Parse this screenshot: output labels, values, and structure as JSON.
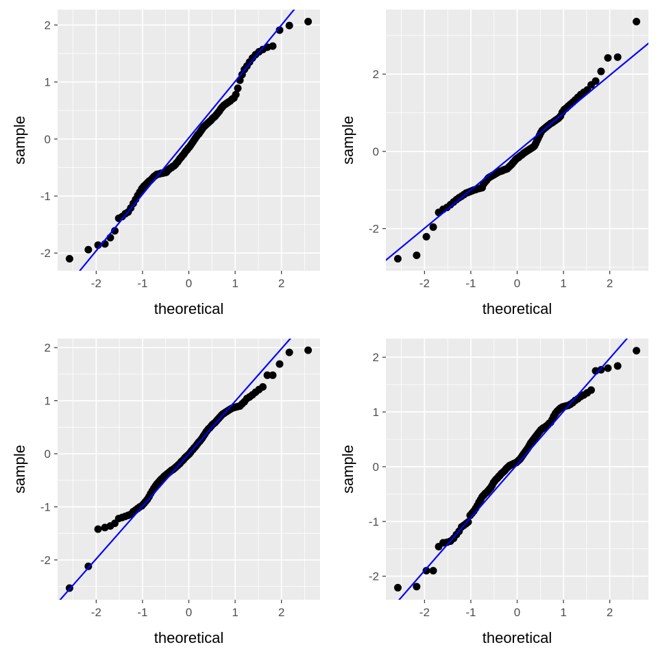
{
  "chart_data": [
    {
      "type": "scatter",
      "title": "",
      "xlabel": "theoretical",
      "ylabel": "sample",
      "xlim": [
        -2.834,
        2.834
      ],
      "ylim": [
        -2.31,
        2.27
      ],
      "grid": true,
      "x_ticks": [
        "-2",
        "-1",
        "0",
        "1",
        "2"
      ],
      "y_ticks": [
        "-2",
        "-1",
        "0",
        "1",
        "2"
      ],
      "point_color": "#000000",
      "line_color": "#0000ff",
      "reference_line": {
        "intercept": 0.02,
        "slope": 0.99
      },
      "x": [
        -2.576,
        -2.17,
        -1.96,
        -1.812,
        -1.695,
        -1.598,
        -1.514,
        -1.44,
        -1.372,
        -1.311,
        -1.254,
        -1.2,
        -1.15,
        -1.103,
        -1.058,
        -1.015,
        -0.974,
        -0.935,
        -0.896,
        -0.86,
        -0.824,
        -0.789,
        -0.755,
        -0.722,
        -0.69,
        -0.659,
        -0.628,
        -0.598,
        -0.568,
        -0.539,
        -0.51,
        -0.482,
        -0.454,
        -0.426,
        -0.399,
        -0.372,
        -0.345,
        -0.319,
        -0.292,
        -0.266,
        -0.24,
        -0.215,
        -0.189,
        -0.164,
        -0.138,
        -0.113,
        -0.088,
        -0.063,
        -0.038,
        -0.013,
        0.013,
        0.038,
        0.063,
        0.088,
        0.113,
        0.138,
        0.164,
        0.189,
        0.215,
        0.24,
        0.266,
        0.292,
        0.319,
        0.345,
        0.372,
        0.399,
        0.426,
        0.454,
        0.482,
        0.51,
        0.539,
        0.568,
        0.598,
        0.628,
        0.659,
        0.69,
        0.722,
        0.755,
        0.789,
        0.824,
        0.86,
        0.896,
        0.935,
        0.974,
        1.015,
        1.058,
        1.103,
        1.15,
        1.2,
        1.254,
        1.311,
        1.372,
        1.44,
        1.514,
        1.598,
        1.695,
        1.812,
        1.96,
        2.17,
        2.576
      ],
      "y": [
        -2.1,
        -1.94,
        -1.86,
        -1.84,
        -1.73,
        -1.61,
        -1.39,
        -1.36,
        -1.31,
        -1.28,
        -1.21,
        -1.13,
        -1.06,
        -0.99,
        -0.93,
        -0.87,
        -0.83,
        -0.8,
        -0.77,
        -0.74,
        -0.72,
        -0.69,
        -0.66,
        -0.64,
        -0.62,
        -0.615,
        -0.61,
        -0.6,
        -0.6,
        -0.59,
        -0.59,
        -0.58,
        -0.55,
        -0.53,
        -0.51,
        -0.5,
        -0.48,
        -0.47,
        -0.45,
        -0.42,
        -0.4,
        -0.37,
        -0.34,
        -0.32,
        -0.29,
        -0.27,
        -0.24,
        -0.21,
        -0.19,
        -0.16,
        -0.14,
        -0.11,
        -0.08,
        -0.05,
        -0.02,
        0.01,
        0.04,
        0.07,
        0.09,
        0.12,
        0.15,
        0.18,
        0.21,
        0.23,
        0.25,
        0.27,
        0.29,
        0.31,
        0.33,
        0.36,
        0.38,
        0.4,
        0.43,
        0.46,
        0.49,
        0.53,
        0.56,
        0.59,
        0.61,
        0.63,
        0.65,
        0.67,
        0.7,
        0.72,
        0.78,
        0.89,
        1.03,
        1.13,
        1.22,
        1.28,
        1.35,
        1.42,
        1.48,
        1.53,
        1.57,
        1.61,
        1.63,
        1.91,
        1.99,
        2.06
      ]
    },
    {
      "type": "scatter",
      "title": "",
      "xlabel": "theoretical",
      "ylabel": "sample",
      "xlim": [
        -2.834,
        2.834
      ],
      "ylim": [
        -3.09,
        3.67
      ],
      "grid": true,
      "x_ticks": [
        "-2",
        "-1",
        "0",
        "1",
        "2"
      ],
      "y_ticks": [
        "-2",
        "0",
        "2"
      ],
      "point_color": "#000000",
      "line_color": "#0000ff",
      "reference_line": {
        "intercept": -0.01,
        "slope": 0.99
      },
      "x": [
        -2.576,
        -2.17,
        -1.96,
        -1.812,
        -1.695,
        -1.598,
        -1.514,
        -1.44,
        -1.372,
        -1.311,
        -1.254,
        -1.2,
        -1.15,
        -1.103,
        -1.058,
        -1.015,
        -0.974,
        -0.935,
        -0.896,
        -0.86,
        -0.824,
        -0.789,
        -0.755,
        -0.722,
        -0.69,
        -0.659,
        -0.628,
        -0.598,
        -0.568,
        -0.539,
        -0.51,
        -0.482,
        -0.454,
        -0.426,
        -0.399,
        -0.372,
        -0.345,
        -0.319,
        -0.292,
        -0.266,
        -0.24,
        -0.215,
        -0.189,
        -0.164,
        -0.138,
        -0.113,
        -0.088,
        -0.063,
        -0.038,
        -0.013,
        0.013,
        0.038,
        0.063,
        0.088,
        0.113,
        0.138,
        0.164,
        0.189,
        0.215,
        0.24,
        0.266,
        0.292,
        0.319,
        0.345,
        0.372,
        0.399,
        0.426,
        0.454,
        0.482,
        0.51,
        0.539,
        0.568,
        0.598,
        0.628,
        0.659,
        0.69,
        0.722,
        0.755,
        0.789,
        0.824,
        0.86,
        0.896,
        0.935,
        0.974,
        1.015,
        1.058,
        1.103,
        1.15,
        1.2,
        1.254,
        1.311,
        1.372,
        1.44,
        1.514,
        1.598,
        1.695,
        1.812,
        1.96,
        2.17,
        2.576
      ],
      "y": [
        -2.78,
        -2.69,
        -2.21,
        -1.96,
        -1.58,
        -1.5,
        -1.45,
        -1.38,
        -1.31,
        -1.25,
        -1.2,
        -1.16,
        -1.12,
        -1.08,
        -1.06,
        -1.04,
        -1.02,
        -1.0,
        -0.99,
        -0.97,
        -0.96,
        -0.95,
        -0.94,
        -0.84,
        -0.79,
        -0.75,
        -0.7,
        -0.67,
        -0.65,
        -0.63,
        -0.61,
        -0.59,
        -0.57,
        -0.55,
        -0.53,
        -0.52,
        -0.51,
        -0.5,
        -0.48,
        -0.47,
        -0.46,
        -0.45,
        -0.42,
        -0.39,
        -0.36,
        -0.33,
        -0.29,
        -0.26,
        -0.22,
        -0.19,
        -0.17,
        -0.15,
        -0.12,
        -0.1,
        -0.08,
        -0.05,
        -0.03,
        -0.01,
        0.01,
        0.03,
        0.05,
        0.07,
        0.09,
        0.11,
        0.14,
        0.2,
        0.27,
        0.34,
        0.41,
        0.48,
        0.54,
        0.57,
        0.6,
        0.63,
        0.66,
        0.69,
        0.72,
        0.74,
        0.77,
        0.8,
        0.83,
        0.86,
        0.91,
        1.01,
        1.08,
        1.12,
        1.17,
        1.22,
        1.27,
        1.33,
        1.4,
        1.47,
        1.53,
        1.59,
        1.72,
        1.82,
        2.07,
        2.42,
        2.44,
        3.36
      ]
    },
    {
      "type": "scatter",
      "title": "",
      "xlabel": "theoretical",
      "ylabel": "sample",
      "xlim": [
        -2.834,
        2.834
      ],
      "ylim": [
        -2.75,
        2.17
      ],
      "grid": true,
      "x_ticks": [
        "-2",
        "-1",
        "0",
        "1",
        "2"
      ],
      "y_ticks": [
        "-2",
        "-1",
        "0",
        "1",
        "2"
      ],
      "point_color": "#000000",
      "line_color": "#0000ff",
      "reference_line": {
        "intercept": 0.0,
        "slope": 0.99
      },
      "x": [
        -2.576,
        -2.17,
        -1.96,
        -1.812,
        -1.695,
        -1.598,
        -1.514,
        -1.44,
        -1.372,
        -1.311,
        -1.254,
        -1.2,
        -1.15,
        -1.103,
        -1.058,
        -1.015,
        -0.974,
        -0.935,
        -0.896,
        -0.86,
        -0.824,
        -0.789,
        -0.755,
        -0.722,
        -0.69,
        -0.659,
        -0.628,
        -0.598,
        -0.568,
        -0.539,
        -0.51,
        -0.482,
        -0.454,
        -0.426,
        -0.399,
        -0.372,
        -0.345,
        -0.319,
        -0.292,
        -0.266,
        -0.24,
        -0.215,
        -0.189,
        -0.164,
        -0.138,
        -0.113,
        -0.088,
        -0.063,
        -0.038,
        -0.013,
        0.013,
        0.038,
        0.063,
        0.088,
        0.113,
        0.138,
        0.164,
        0.189,
        0.215,
        0.24,
        0.266,
        0.292,
        0.319,
        0.345,
        0.372,
        0.399,
        0.426,
        0.454,
        0.482,
        0.51,
        0.539,
        0.568,
        0.598,
        0.628,
        0.659,
        0.69,
        0.722,
        0.755,
        0.789,
        0.824,
        0.86,
        0.896,
        0.935,
        0.974,
        1.015,
        1.058,
        1.103,
        1.15,
        1.2,
        1.254,
        1.311,
        1.372,
        1.44,
        1.514,
        1.598,
        1.695,
        1.812,
        1.96,
        2.17,
        2.576
      ],
      "y": [
        -2.53,
        -2.12,
        -1.42,
        -1.39,
        -1.36,
        -1.31,
        -1.22,
        -1.2,
        -1.18,
        -1.16,
        -1.14,
        -1.09,
        -1.06,
        -1.03,
        -1.0,
        -0.98,
        -0.94,
        -0.9,
        -0.86,
        -0.81,
        -0.75,
        -0.7,
        -0.65,
        -0.61,
        -0.57,
        -0.54,
        -0.51,
        -0.48,
        -0.46,
        -0.43,
        -0.41,
        -0.39,
        -0.37,
        -0.35,
        -0.33,
        -0.31,
        -0.3,
        -0.28,
        -0.26,
        -0.24,
        -0.22,
        -0.2,
        -0.18,
        -0.15,
        -0.13,
        -0.11,
        -0.08,
        -0.06,
        -0.04,
        -0.02,
        0.0,
        0.03,
        0.06,
        0.08,
        0.11,
        0.13,
        0.16,
        0.19,
        0.22,
        0.24,
        0.27,
        0.3,
        0.34,
        0.37,
        0.41,
        0.44,
        0.47,
        0.49,
        0.52,
        0.55,
        0.57,
        0.59,
        0.62,
        0.65,
        0.68,
        0.71,
        0.74,
        0.76,
        0.78,
        0.8,
        0.82,
        0.84,
        0.86,
        0.87,
        0.88,
        0.89,
        0.9,
        0.94,
        0.98,
        1.04,
        1.07,
        1.11,
        1.16,
        1.21,
        1.26,
        1.48,
        1.48,
        1.69,
        1.91,
        1.95
      ]
    },
    {
      "type": "scatter",
      "title": "",
      "xlabel": "theoretical",
      "ylabel": "sample",
      "xlim": [
        -2.834,
        2.834
      ],
      "ylim": [
        -2.43,
        2.34
      ],
      "grid": true,
      "x_ticks": [
        "-2",
        "-1",
        "0",
        "1",
        "2"
      ],
      "y_ticks": [
        "-2",
        "-1",
        "0",
        "1",
        "2"
      ],
      "point_color": "#000000",
      "line_color": "#0000ff",
      "reference_line": {
        "intercept": 0.04,
        "slope": 0.97
      },
      "x": [
        -2.576,
        -2.17,
        -1.96,
        -1.812,
        -1.695,
        -1.598,
        -1.514,
        -1.44,
        -1.372,
        -1.311,
        -1.254,
        -1.2,
        -1.15,
        -1.103,
        -1.058,
        -1.015,
        -0.974,
        -0.935,
        -0.896,
        -0.86,
        -0.824,
        -0.789,
        -0.755,
        -0.722,
        -0.69,
        -0.659,
        -0.628,
        -0.598,
        -0.568,
        -0.539,
        -0.51,
        -0.482,
        -0.454,
        -0.426,
        -0.399,
        -0.372,
        -0.345,
        -0.319,
        -0.292,
        -0.266,
        -0.24,
        -0.215,
        -0.189,
        -0.164,
        -0.138,
        -0.113,
        -0.088,
        -0.063,
        -0.038,
        -0.013,
        0.013,
        0.038,
        0.063,
        0.088,
        0.113,
        0.138,
        0.164,
        0.189,
        0.215,
        0.24,
        0.266,
        0.292,
        0.319,
        0.345,
        0.372,
        0.399,
        0.426,
        0.454,
        0.482,
        0.51,
        0.539,
        0.568,
        0.598,
        0.628,
        0.659,
        0.69,
        0.722,
        0.755,
        0.789,
        0.824,
        0.86,
        0.896,
        0.935,
        0.974,
        1.015,
        1.058,
        1.103,
        1.15,
        1.2,
        1.254,
        1.311,
        1.372,
        1.44,
        1.514,
        1.598,
        1.695,
        1.812,
        1.96,
        2.17,
        2.576
      ],
      "y": [
        -2.21,
        -2.19,
        -1.9,
        -1.9,
        -1.46,
        -1.39,
        -1.38,
        -1.36,
        -1.31,
        -1.24,
        -1.18,
        -1.1,
        -1.07,
        -1.04,
        -1.01,
        -0.89,
        -0.85,
        -0.81,
        -0.76,
        -0.71,
        -0.65,
        -0.6,
        -0.55,
        -0.52,
        -0.49,
        -0.47,
        -0.44,
        -0.41,
        -0.38,
        -0.34,
        -0.29,
        -0.26,
        -0.23,
        -0.21,
        -0.18,
        -0.16,
        -0.13,
        -0.11,
        -0.09,
        -0.07,
        -0.04,
        -0.02,
        0.0,
        0.02,
        0.03,
        0.04,
        0.05,
        0.06,
        0.07,
        0.08,
        0.1,
        0.12,
        0.14,
        0.17,
        0.2,
        0.23,
        0.26,
        0.29,
        0.32,
        0.35,
        0.39,
        0.43,
        0.46,
        0.49,
        0.52,
        0.55,
        0.58,
        0.61,
        0.64,
        0.67,
        0.69,
        0.71,
        0.72,
        0.74,
        0.76,
        0.79,
        0.81,
        0.86,
        0.92,
        0.97,
        1.01,
        1.04,
        1.07,
        1.09,
        1.1,
        1.11,
        1.12,
        1.14,
        1.17,
        1.21,
        1.24,
        1.28,
        1.31,
        1.35,
        1.4,
        1.75,
        1.77,
        1.8,
        1.84,
        2.12
      ]
    }
  ]
}
